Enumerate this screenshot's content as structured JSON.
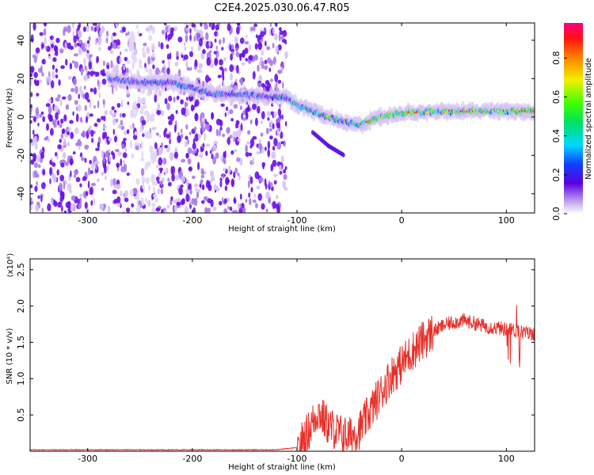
{
  "title": "C2E4.2025.030.06.47.R05",
  "chart_data": [
    {
      "type": "heatmap",
      "xlabel": "Height of straight line (km)",
      "ylabel": "Frequency (Hz)",
      "xlim": [
        -355,
        127
      ],
      "ylim": [
        -50,
        49
      ],
      "xticks": [
        "-300",
        "-200",
        "-100",
        "0",
        "100"
      ],
      "yticks": [
        "40",
        "20",
        "0",
        "-20",
        "-40"
      ],
      "colorbar": {
        "label": "Normalized spectral amplitude",
        "ticks": [
          "0.0",
          "0.2",
          "0.4",
          "0.6",
          "0.8"
        ],
        "range": [
          0,
          0.98
        ]
      },
      "noise_region_x": [
        -355,
        -110
      ],
      "ridge": [
        {
          "x": -280,
          "y": 20
        },
        {
          "x": -250,
          "y": 18
        },
        {
          "x": -220,
          "y": 18
        },
        {
          "x": -200,
          "y": 15
        },
        {
          "x": -180,
          "y": 12
        },
        {
          "x": -165,
          "y": 12
        },
        {
          "x": -110,
          "y": 10
        },
        {
          "x": -100,
          "y": 6
        },
        {
          "x": -80,
          "y": 2
        },
        {
          "x": -60,
          "y": -2
        },
        {
          "x": -40,
          "y": -4
        },
        {
          "x": -20,
          "y": 0
        },
        {
          "x": 0,
          "y": 2
        },
        {
          "x": 40,
          "y": 3
        },
        {
          "x": 80,
          "y": 3
        },
        {
          "x": 127,
          "y": 3
        }
      ],
      "branch": [
        {
          "x": -85,
          "y": -8
        },
        {
          "x": -70,
          "y": -15
        },
        {
          "x": -55,
          "y": -20
        }
      ]
    },
    {
      "type": "line",
      "xlabel": "Height of straight line (km)",
      "ylabel": "SNR (10 * v/v)",
      "multiplier": "(x10⁴)",
      "xlim": [
        -355,
        127
      ],
      "ylim": [
        0,
        2.65
      ],
      "xticks": [
        "-300",
        "-200",
        "-100",
        "0",
        "100"
      ],
      "yticks": [
        "0.5",
        "1.0",
        "1.5",
        "2.0",
        "2.5"
      ],
      "color": "#e8302a",
      "series": [
        {
          "x": [
            -355,
            -300,
            -200,
            -120,
            -100,
            -90,
            -80,
            -70,
            -60,
            -50,
            -40,
            -30,
            -20,
            -10,
            0,
            10,
            20,
            30,
            40,
            50,
            60,
            70,
            80,
            90,
            100,
            110,
            120,
            127
          ],
          "values": [
            0.02,
            0.02,
            0.02,
            0.02,
            0.05,
            0.25,
            0.55,
            0.35,
            0.25,
            0.2,
            0.3,
            0.55,
            0.8,
            1.05,
            1.2,
            1.38,
            1.52,
            1.65,
            1.73,
            1.78,
            1.8,
            1.76,
            1.72,
            1.7,
            1.68,
            1.66,
            1.63,
            1.62
          ]
        }
      ]
    }
  ]
}
